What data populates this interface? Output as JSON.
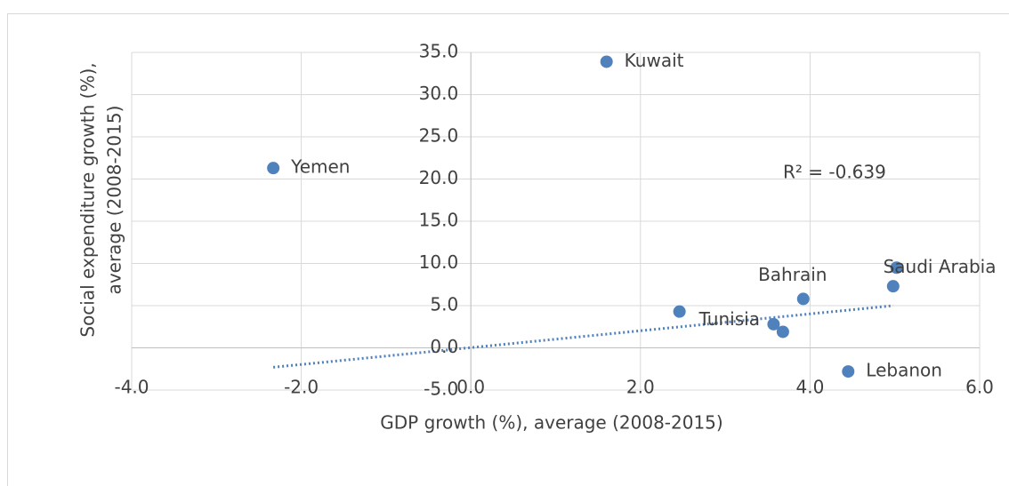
{
  "chart_data": {
    "type": "scatter",
    "x_label": "GDP growth (%), average (2008-2015)",
    "y_label": [
      "Social expenditure growth (%),",
      "average (2008-2015)"
    ],
    "annotation": "R² = -0.639",
    "point_labels": [
      "Kuwait",
      "Yemen",
      "Tunisia",
      null,
      null,
      "Bahrain",
      "Saudi Arabia",
      null,
      "Lebanon"
    ],
    "x": [
      1.6,
      -2.33,
      2.46,
      3.57,
      3.68,
      3.92,
      5.02,
      4.98,
      4.45
    ],
    "y": [
      33.9,
      21.3,
      4.3,
      2.8,
      1.9,
      5.8,
      9.5,
      7.3,
      -2.8
    ],
    "color": "#4f81bd",
    "trendline": {
      "x": [
        -2.33,
        4.98
      ],
      "y": [
        -2.3,
        5.0
      ],
      "color": "#4f81bd"
    },
    "xlim": [
      -4,
      6
    ],
    "ylim": [
      -5,
      35
    ],
    "xticks": [
      {
        "value": -4,
        "label": "-4.0"
      },
      {
        "value": -2,
        "label": "-2.0"
      },
      {
        "value": 0,
        "label": "0.0"
      },
      {
        "value": 2,
        "label": "2.0"
      },
      {
        "value": 4,
        "label": "4.0"
      },
      {
        "value": 6,
        "label": "6.0"
      }
    ],
    "yticks": [
      {
        "value": -5,
        "label": "-5.0"
      },
      {
        "value": 0,
        "label": "0.0"
      },
      {
        "value": 5,
        "label": "5.0"
      },
      {
        "value": 10,
        "label": "10.0"
      },
      {
        "value": 15,
        "label": "15.0"
      },
      {
        "value": 20,
        "label": "20.0"
      },
      {
        "value": 25,
        "label": "25.0"
      },
      {
        "value": 30,
        "label": "30.0"
      },
      {
        "value": 35,
        "label": "35.0"
      }
    ],
    "grid": true
  }
}
